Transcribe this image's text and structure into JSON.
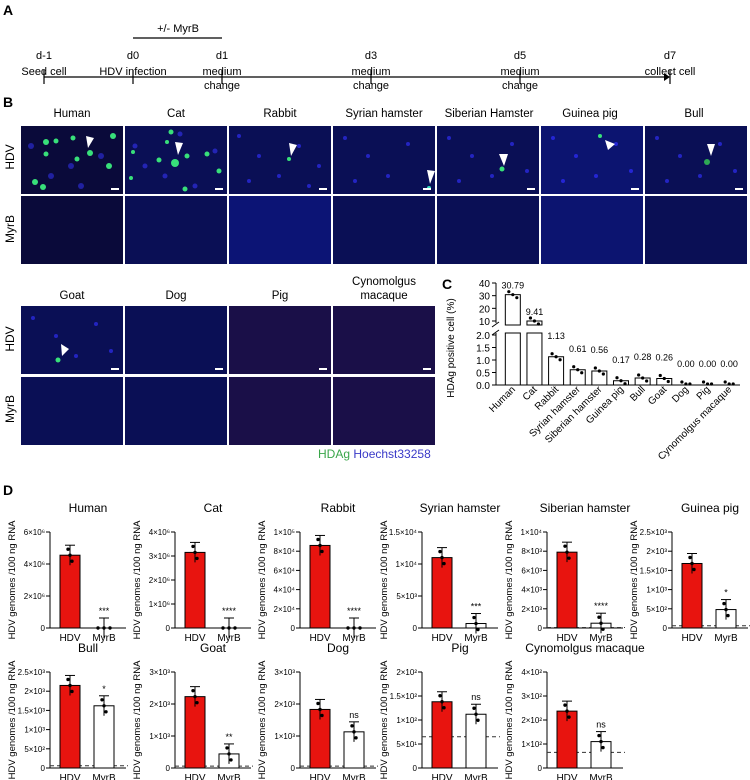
{
  "panelA": {
    "letter": "A",
    "treatment_label": "+/- MyrB",
    "days": [
      {
        "day": "d-1",
        "event": "Seed cell",
        "event2": ""
      },
      {
        "day": "d0",
        "event": "HDV infection",
        "event2": ""
      },
      {
        "day": "d1",
        "event": "medium",
        "event2": "change"
      },
      {
        "day": "d3",
        "event": "medium",
        "event2": "change"
      },
      {
        "day": "d5",
        "event": "medium",
        "event2": "change"
      },
      {
        "day": "d7",
        "event": "collect cell",
        "event2": ""
      }
    ]
  },
  "panelB": {
    "letter": "B",
    "row_labels": {
      "hdv": "HDV",
      "myrb": "MyrB"
    },
    "row1_species": [
      "Human",
      "Cat",
      "Rabbit",
      "Syrian hamster",
      "Siberian Hamster",
      "Guinea pig",
      "Bull"
    ],
    "row2_species": [
      "Goat",
      "Dog",
      "Pig",
      "Cynomolgus",
      "macaque"
    ],
    "legend": {
      "hdag": "HDAg",
      "hoechst": "Hoechst33258",
      "hdag_color": "#3aa64a",
      "hoechst_color": "#3a3ac8"
    }
  },
  "chart_data": [
    {
      "panel": "C",
      "type": "bar",
      "title": "",
      "xlabel": "",
      "ylabel": "HDAg positive cell (%)",
      "categories": [
        "Human",
        "Cat",
        "Rabbit",
        "Syrian hamster",
        "Siberian hamster",
        "Guinea pig",
        "Bull",
        "Goat",
        "Dog",
        "Pig",
        "Cynomolgus macaque"
      ],
      "values": [
        30.79,
        9.41,
        1.13,
        0.61,
        0.56,
        0.17,
        0.28,
        0.26,
        0.0,
        0.0,
        0.0
      ],
      "value_labels": [
        "30.79",
        "9.41",
        "1.13",
        "0.61",
        "0.56",
        "0.17",
        "0.28",
        "0.26",
        "0.00",
        "0.00",
        "0.00"
      ],
      "y_axis_break": {
        "lower": [
          0,
          2.0
        ],
        "upper": [
          10,
          40
        ]
      },
      "yticks_lower": [
        "0.0",
        "0.5",
        "1.0",
        "1.5",
        "2.0"
      ],
      "yticks_upper": [
        "10",
        "20",
        "30",
        "40"
      ],
      "bar_color": "#ffffff",
      "grid": false
    },
    {
      "panel": "D",
      "type": "bar",
      "ylabel": "HDV genomes /100 ng RNA",
      "categories": [
        "HDV",
        "MyrB"
      ],
      "bar_colors": [
        "#e8140f",
        "#ffffff"
      ],
      "subplots": [
        {
          "title": "Human",
          "ylim": [
            0,
            6000000
          ],
          "yticks": [
            "0",
            "2×10⁶",
            "4×10⁶",
            "6×10⁶"
          ],
          "values": [
            4550000,
            0
          ],
          "sig": "***",
          "lod": null
        },
        {
          "title": "Cat",
          "ylim": [
            0,
            4000000
          ],
          "yticks": [
            "0",
            "1×10⁶",
            "2×10⁶",
            "3×10⁶",
            "4×10⁶"
          ],
          "values": [
            3150000,
            0
          ],
          "sig": "****",
          "lod": null
        },
        {
          "title": "Rabbit",
          "ylim": [
            0,
            100000
          ],
          "yticks": [
            "0",
            "2×10⁴",
            "4×10⁴",
            "6×10⁴",
            "8×10⁴",
            "1×10⁵"
          ],
          "values": [
            86000,
            0
          ],
          "sig": "****",
          "lod": null
        },
        {
          "title": "Syrian hamster",
          "ylim": [
            0,
            15000
          ],
          "yticks": [
            "0",
            "5×10³",
            "1×10⁴",
            "1.5×10⁴"
          ],
          "values": [
            11000,
            700
          ],
          "sig": "***",
          "lod": null
        },
        {
          "title": "Siberian hamster",
          "ylim": [
            0,
            10000
          ],
          "yticks": [
            "0",
            "2×10³",
            "4×10³",
            "6×10³",
            "8×10³",
            "1×10⁴"
          ],
          "values": [
            7900,
            500
          ],
          "sig": "****",
          "lod": 50
        },
        {
          "title": "Guinea pig",
          "ylim": [
            0,
            2500
          ],
          "yticks": [
            "0",
            "5×10²",
            "1×10³",
            "1.5×10³",
            "2×10³",
            "2.5×10³"
          ],
          "values": [
            1680,
            480
          ],
          "sig": "*",
          "lod": 60
        },
        {
          "title": "Bull",
          "ylim": [
            0,
            2500
          ],
          "yticks": [
            "0",
            "5×10²",
            "1×10³",
            "1.5×10³",
            "2×10³",
            "2.5×10³"
          ],
          "values": [
            2150,
            1620
          ],
          "sig": "*",
          "lod": 60
        },
        {
          "title": "Goat",
          "ylim": [
            0,
            3000
          ],
          "yticks": [
            "0",
            "1×10³",
            "2×10³",
            "3×10³"
          ],
          "values": [
            2230,
            440
          ],
          "sig": "**",
          "lod": 60
        },
        {
          "title": "Dog",
          "ylim": [
            0,
            3000
          ],
          "yticks": [
            "0",
            "1×10³",
            "2×10³",
            "3×10³"
          ],
          "values": [
            1830,
            1130
          ],
          "sig": "ns",
          "lod": 60
        },
        {
          "title": "Pig",
          "ylim": [
            0,
            200
          ],
          "yticks": [
            "0",
            "5×10¹",
            "1×10²",
            "1.5×10²",
            "2×10²"
          ],
          "values": [
            138,
            112
          ],
          "sig": "ns",
          "lod": 65
        },
        {
          "title": "Cynomolgus macaque",
          "ylim": [
            0,
            400
          ],
          "yticks": [
            "0",
            "1×10²",
            "2×10²",
            "3×10²",
            "4×10²"
          ],
          "values": [
            237,
            110
          ],
          "sig": "ns",
          "lod": 65
        }
      ]
    }
  ],
  "panelC": {
    "letter": "C"
  },
  "panelD": {
    "letter": "D"
  }
}
